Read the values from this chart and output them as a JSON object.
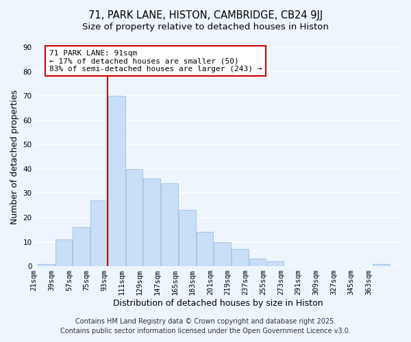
{
  "title": "71, PARK LANE, HISTON, CAMBRIDGE, CB24 9JJ",
  "subtitle": "Size of property relative to detached houses in Histon",
  "xlabel": "Distribution of detached houses by size in Histon",
  "ylabel": "Number of detached properties",
  "bar_edges": [
    21,
    39,
    57,
    75,
    93,
    111,
    129,
    147,
    165,
    183,
    201,
    219,
    237,
    255,
    273,
    291,
    309,
    327,
    345,
    363,
    381
  ],
  "bar_heights": [
    1,
    11,
    16,
    27,
    70,
    40,
    36,
    34,
    23,
    14,
    10,
    7,
    3,
    2,
    0,
    0,
    0,
    0,
    0,
    1
  ],
  "bar_color": "#c9dff7",
  "bar_edgecolor": "#a8c8e8",
  "vline_x": 93,
  "vline_color": "#cc0000",
  "annotation_text": "71 PARK LANE: 91sqm\n← 17% of detached houses are smaller (50)\n83% of semi-detached houses are larger (243) →",
  "annotation_boxcolor": "white",
  "annotation_edgecolor": "#cc0000",
  "ylim": [
    0,
    90
  ],
  "yticks": [
    0,
    10,
    20,
    30,
    40,
    50,
    60,
    70,
    80,
    90
  ],
  "footer_line1": "Contains HM Land Registry data © Crown copyright and database right 2025.",
  "footer_line2": "Contains public sector information licensed under the Open Government Licence v3.0.",
  "bg_color": "#eef5fd",
  "grid_color": "#ffffff",
  "title_fontsize": 10.5,
  "subtitle_fontsize": 9.5,
  "tick_label_fontsize": 7.5,
  "axis_label_fontsize": 9,
  "annotation_fontsize": 8,
  "footer_fontsize": 7
}
